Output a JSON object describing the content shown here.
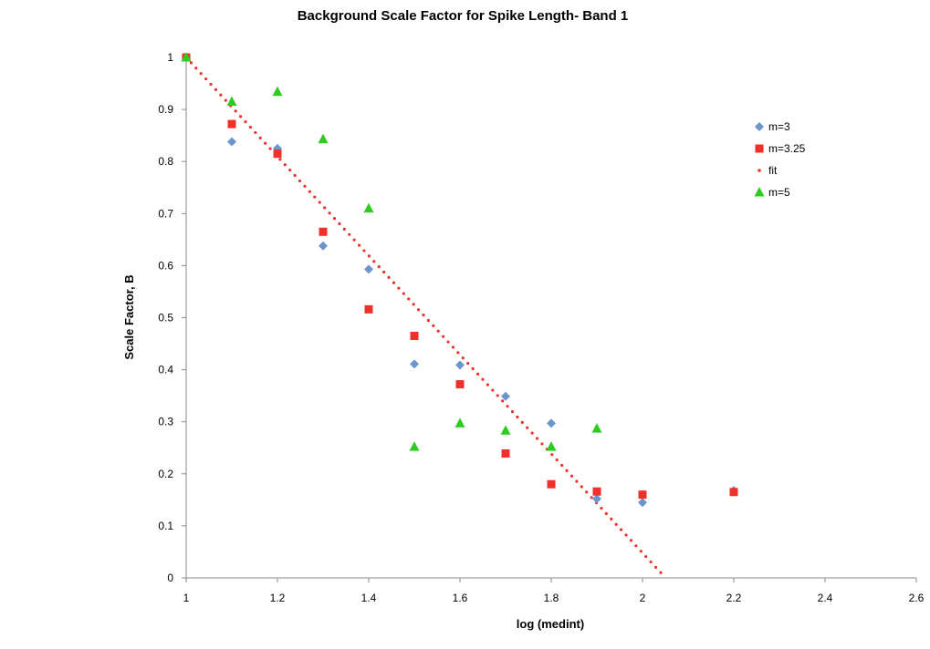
{
  "chart_data": {
    "type": "scatter",
    "title": "Background Scale Factor for Spike Length- Band 1",
    "xlabel": "log (medint)",
    "ylabel": "Scale Factor, B",
    "xlim": [
      1,
      2.6
    ],
    "ylim": [
      0,
      1
    ],
    "xticks": [
      "1",
      "1.2",
      "1.4",
      "1.6",
      "1.8",
      "2",
      "2.2",
      "2.4",
      "2.6"
    ],
    "yticks": [
      "0",
      "0.1",
      "0.2",
      "0.3",
      "0.4",
      "0.5",
      "0.6",
      "0.7",
      "0.8",
      "0.9",
      "1"
    ],
    "grid": false,
    "legend_position": "right",
    "series": [
      {
        "name": "m=3",
        "marker": "diamond",
        "color": "#6b96cc",
        "x": [
          1.0,
          1.1,
          1.2,
          1.3,
          1.4,
          1.5,
          1.6,
          1.7,
          1.8,
          1.9,
          2.0,
          2.2
        ],
        "y": [
          1.0,
          0.838,
          0.825,
          0.638,
          0.593,
          0.411,
          0.409,
          0.349,
          0.297,
          0.152,
          0.145,
          0.168
        ]
      },
      {
        "name": "m=3.25",
        "marker": "square",
        "color": "#f0302a",
        "x": [
          1.0,
          1.1,
          1.2,
          1.3,
          1.4,
          1.5,
          1.6,
          1.7,
          1.8,
          1.9,
          2.0,
          2.2
        ],
        "y": [
          1.0,
          0.872,
          0.815,
          0.665,
          0.516,
          0.465,
          0.372,
          0.239,
          0.18,
          0.166,
          0.16,
          0.165
        ]
      },
      {
        "name": "fit",
        "marker": "dotted-line",
        "color": "#f0302a",
        "x": [
          1.0,
          2.04
        ],
        "y": [
          1.0,
          0.01
        ]
      },
      {
        "name": "m=5",
        "marker": "triangle",
        "color": "#2ecc20",
        "x": [
          1.0,
          1.1,
          1.2,
          1.3,
          1.4,
          1.5,
          1.6,
          1.7,
          1.8,
          1.9
        ],
        "y": [
          1.0,
          0.915,
          0.934,
          0.843,
          0.71,
          0.252,
          0.297,
          0.283,
          0.252,
          0.287
        ]
      }
    ]
  }
}
